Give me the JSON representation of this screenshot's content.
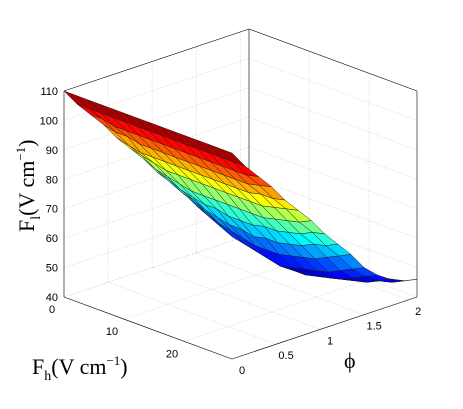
{
  "chart_data": {
    "type": "surface3d",
    "title": "",
    "zlabel": "F",
    "zlabel_sub": "l",
    "zlabel_units": "(V cm",
    "zlabel_exp": "−1",
    "zlabel_close": ")",
    "xlabel": "F",
    "xlabel_sub": "h",
    "xlabel_units": "(V cm",
    "xlabel_exp": "−1",
    "xlabel_close": ")",
    "ylabel": "ϕ",
    "x_ticks": [
      "0",
      "10",
      "20"
    ],
    "y_ticks": [
      "0",
      "0.5",
      "1",
      "1.5",
      "2"
    ],
    "z_ticks": [
      "40",
      "50",
      "60",
      "70",
      "80",
      "90",
      "100",
      "110"
    ],
    "xlim": [
      0,
      28
    ],
    "ylim": [
      0,
      2.1
    ],
    "zlim": [
      40,
      110
    ],
    "grid": true,
    "colormap": "jet",
    "x": [
      0,
      2,
      4,
      6,
      8,
      10,
      12,
      14,
      16,
      18,
      20,
      22,
      24,
      26,
      28
    ],
    "y": [
      0,
      0.15,
      0.3,
      0.45,
      0.6,
      0.75,
      0.9,
      1.05,
      1.2,
      1.35,
      1.5,
      1.65,
      1.8,
      1.95,
      2.1
    ],
    "z": [
      [
        110,
        110,
        110,
        110,
        110,
        110,
        110,
        110,
        110,
        110,
        110,
        110,
        110,
        110,
        110
      ],
      [
        104,
        104,
        104,
        104,
        104,
        104,
        104,
        104,
        104,
        104,
        104,
        104,
        104,
        104,
        104
      ],
      [
        99,
        99,
        98,
        98,
        98,
        98,
        98,
        98,
        98,
        98,
        98,
        98,
        98,
        98,
        99
      ],
      [
        94,
        93,
        93,
        92,
        92,
        92,
        92,
        92,
        92,
        92,
        92,
        92,
        92,
        93,
        94
      ],
      [
        88,
        87,
        86,
        86,
        86,
        86,
        86,
        86,
        86,
        86,
        86,
        86,
        87,
        87,
        88
      ],
      [
        83,
        82,
        81,
        80,
        80,
        80,
        80,
        80,
        80,
        80,
        80,
        80,
        81,
        82,
        83
      ],
      [
        78,
        76,
        75,
        74,
        73,
        73,
        73,
        73,
        73,
        73,
        73,
        74,
        75,
        76,
        78
      ],
      [
        72,
        71,
        69,
        68,
        67,
        67,
        66,
        66,
        66,
        67,
        67,
        68,
        69,
        71,
        72
      ],
      [
        67,
        65,
        64,
        62,
        61,
        60,
        60,
        59,
        60,
        60,
        61,
        62,
        64,
        65,
        67
      ],
      [
        62,
        60,
        58,
        56,
        55,
        54,
        53,
        53,
        53,
        54,
        55,
        56,
        58,
        60,
        62
      ],
      [
        56,
        54,
        52,
        50,
        49,
        48,
        47,
        46,
        47,
        48,
        49,
        50,
        52,
        54,
        56
      ],
      [
        52,
        50,
        48,
        46,
        45,
        44,
        43,
        43,
        43,
        44,
        45,
        46,
        48,
        50,
        52
      ],
      [
        49,
        47,
        45,
        44,
        43,
        42,
        42,
        42,
        42,
        42,
        43,
        44,
        45,
        47,
        49
      ],
      [
        47,
        45,
        44,
        43,
        42,
        42,
        41,
        41,
        41,
        42,
        42,
        43,
        44,
        45,
        47
      ],
      [
        46,
        44,
        43,
        42,
        41,
        41,
        41,
        41,
        41,
        41,
        41,
        42,
        43,
        44,
        46
      ]
    ]
  }
}
